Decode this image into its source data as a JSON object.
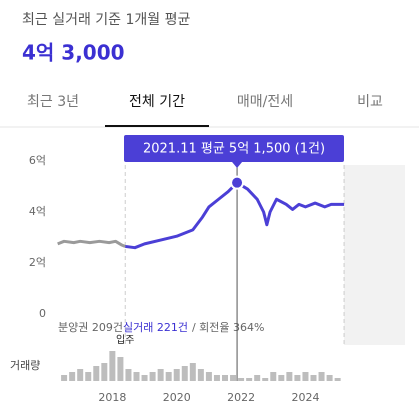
{
  "header": {
    "title": "최근 실거래 기준 1개월 평균",
    "value": "4억 3,000"
  },
  "tabs": [
    "최근 3년",
    "전체 기간",
    "매매/전세",
    "비교"
  ],
  "active_tab": 1,
  "chart_data": [
    {
      "type": "line",
      "xlim": [
        2016,
        2027
      ],
      "ylim": [
        0,
        6
      ],
      "xticks": [
        2018,
        2020,
        2022,
        2024
      ],
      "yticks": [
        0,
        {
          "value": 2,
          "label": "2억"
        },
        {
          "value": 4,
          "label": "4억"
        },
        {
          "value": 6,
          "label": "6억"
        }
      ],
      "series": [
        {
          "color": "#9a9a9a",
          "x": [
            2016.3,
            2016.5,
            2016.8,
            2017.0,
            2017.3,
            2017.6,
            2017.9,
            2018.1,
            2018.3,
            2018.4
          ],
          "values": [
            2.75,
            2.85,
            2.8,
            2.85,
            2.8,
            2.85,
            2.8,
            2.85,
            2.7,
            2.65
          ]
        },
        {
          "color": "#4b3fd6",
          "x": [
            2018.4,
            2018.7,
            2019.0,
            2019.5,
            2020.0,
            2020.5,
            2020.8,
            2021.0,
            2021.3,
            2021.6,
            2021.875,
            2022.2,
            2022.5,
            2022.7,
            2022.8,
            2022.9,
            2023.1,
            2023.4,
            2023.6,
            2023.8,
            2024.0,
            2024.3,
            2024.6,
            2024.8,
            2025.2
          ],
          "values": [
            2.65,
            2.6,
            2.75,
            2.9,
            3.05,
            3.3,
            3.8,
            4.2,
            4.5,
            4.8,
            5.15,
            4.9,
            4.5,
            4.0,
            3.5,
            4.0,
            4.5,
            4.3,
            4.1,
            4.3,
            4.2,
            4.35,
            4.2,
            4.3,
            4.3
          ]
        }
      ],
      "highlight": {
        "x": 2021.875,
        "value": 5.15,
        "label": "2021.11 평균 5억 1,500 (1건)"
      },
      "annotation": {
        "text": "입주",
        "x": 2018.4
      },
      "notes": [
        "분양권 209건",
        "실거래 221건",
        "/ 회전율 364%"
      ]
    },
    {
      "type": "bar",
      "title": "거래량",
      "color": "#bdbdbd",
      "ylim": [
        0,
        12
      ],
      "x": [
        2016.5,
        2016.75,
        2017,
        2017.25,
        2017.5,
        2017.75,
        2018,
        2018.25,
        2018.5,
        2018.75,
        2019,
        2019.25,
        2019.5,
        2019.75,
        2020,
        2020.25,
        2020.5,
        2020.75,
        2021,
        2021.25,
        2021.5,
        2021.75,
        2022,
        2022.25,
        2022.5,
        2022.75,
        2023,
        2023.25,
        2023.5,
        2023.75,
        2024,
        2024.25,
        2024.5,
        2024.75,
        2025
      ],
      "values": [
        2,
        3,
        4,
        3,
        5,
        6,
        10,
        8,
        4,
        3,
        2,
        3,
        4,
        3,
        4,
        5,
        6,
        4,
        3,
        2,
        2,
        2,
        1,
        1,
        2,
        1,
        3,
        2,
        3,
        2,
        3,
        2,
        3,
        2,
        1
      ]
    }
  ]
}
